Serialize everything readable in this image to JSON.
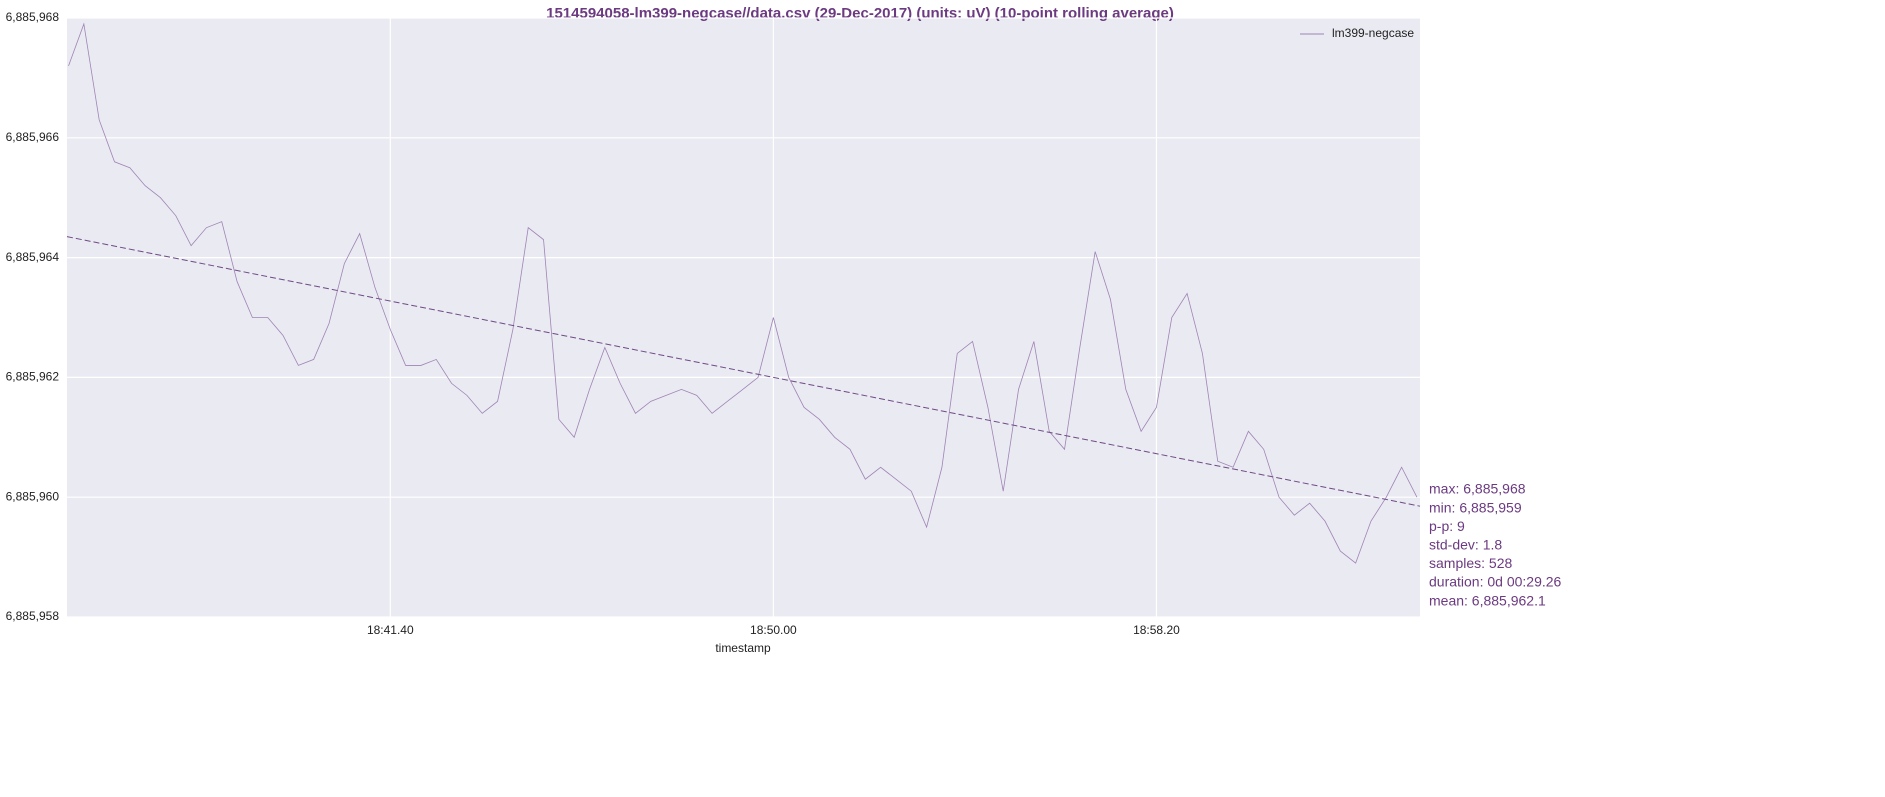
{
  "chart_data": {
    "type": "line",
    "title": "1514594058-lm399-negcase//data.csv (29-Dec-2017) (units: uV) (10-point rolling average)",
    "xlabel": "timestamp",
    "x": [
      66880,
      66900,
      66920,
      66940,
      66960,
      66980,
      67000,
      67020,
      67040,
      67060,
      67080,
      67100,
      67120,
      67140,
      67160,
      67180,
      67200,
      67220,
      67240,
      67260,
      67280,
      67300,
      67320,
      67340,
      67360,
      67380,
      67400,
      67420,
      67440,
      67460,
      67480,
      67500,
      67520,
      67540,
      67560,
      67580,
      67600,
      67620,
      67640,
      67660,
      67680,
      67700,
      67720,
      67740,
      67760,
      67780,
      67800,
      67820,
      67840,
      67860,
      67880,
      67900,
      67920,
      67940,
      67960,
      67980,
      68000,
      68020,
      68040,
      68060,
      68080,
      68100,
      68120,
      68140,
      68160,
      68180,
      68200,
      68220,
      68240,
      68260,
      68280,
      68300,
      68320,
      68340,
      68360,
      68380,
      68400,
      68420,
      68440,
      68460,
      68480,
      68500,
      68520,
      68540,
      68560,
      68580,
      68600,
      68620,
      68640
    ],
    "series": [
      {
        "name": "lm399-negcase",
        "color": "#9f84b4",
        "values": [
          6885967.2,
          6885967.9,
          6885966.3,
          6885965.6,
          6885965.5,
          6885965.2,
          6885965.0,
          6885964.7,
          6885964.2,
          6885964.5,
          6885964.6,
          6885963.6,
          6885963.0,
          6885963.0,
          6885962.7,
          6885962.2,
          6885962.3,
          6885962.9,
          6885963.9,
          6885964.4,
          6885963.5,
          6885962.8,
          6885962.2,
          6885962.2,
          6885962.3,
          6885961.9,
          6885961.7,
          6885961.4,
          6885961.6,
          6885962.8,
          6885964.5,
          6885964.3,
          6885961.3,
          6885961.0,
          6885961.8,
          6885962.5,
          6885961.9,
          6885961.4,
          6885961.6,
          6885961.7,
          6885961.8,
          6885961.7,
          6885961.4,
          6885961.6,
          6885961.8,
          6885962.0,
          6885963.0,
          6885962.0,
          6885961.5,
          6885961.3,
          6885961.0,
          6885960.8,
          6885960.3,
          6885960.5,
          6885960.3,
          6885960.1,
          6885959.5,
          6885960.5,
          6885962.4,
          6885962.6,
          6885961.5,
          6885960.1,
          6885961.8,
          6885962.6,
          6885961.1,
          6885960.8,
          6885962.5,
          6885964.1,
          6885963.3,
          6885961.8,
          6885961.1,
          6885961.5,
          6885963.0,
          6885963.4,
          6885962.4,
          6885960.6,
          6885960.5,
          6885961.1,
          6885960.8,
          6885960.0,
          6885959.7,
          6885959.9,
          6885959.6,
          6885959.1,
          6885958.9,
          6885959.6,
          6885960.0,
          6885960.5,
          6885960.0
        ]
      }
    ],
    "trendline": {
      "x": [
        66878,
        68644
      ],
      "values": [
        6885964.35,
        6885959.85
      ],
      "color": "#6e4a85",
      "dashed": true
    },
    "xlim": [
      66878,
      68644
    ],
    "ylim": [
      6885958,
      6885968
    ],
    "xticks": [
      {
        "value": 67300,
        "label": "18:41.40"
      },
      {
        "value": 67800,
        "label": "18:50.00"
      },
      {
        "value": 68300,
        "label": "18:58.20"
      }
    ],
    "yticks": [
      {
        "value": 6885958,
        "label": "6,885,958"
      },
      {
        "value": 6885960,
        "label": "6,885,960"
      },
      {
        "value": 6885962,
        "label": "6,885,962"
      },
      {
        "value": 6885964,
        "label": "6,885,964"
      },
      {
        "value": 6885966,
        "label": "6,885,966"
      },
      {
        "value": 6885968,
        "label": "6,885,968"
      }
    ],
    "grid": true,
    "legend": "upper right",
    "annotations": [
      "max: 6,885,968",
      "min: 6,885,959",
      "p-p: 9",
      "std-dev: 1.8",
      "samples: 528",
      "duration: 0d 00:29.26",
      "mean: 6,885,962.1"
    ]
  }
}
